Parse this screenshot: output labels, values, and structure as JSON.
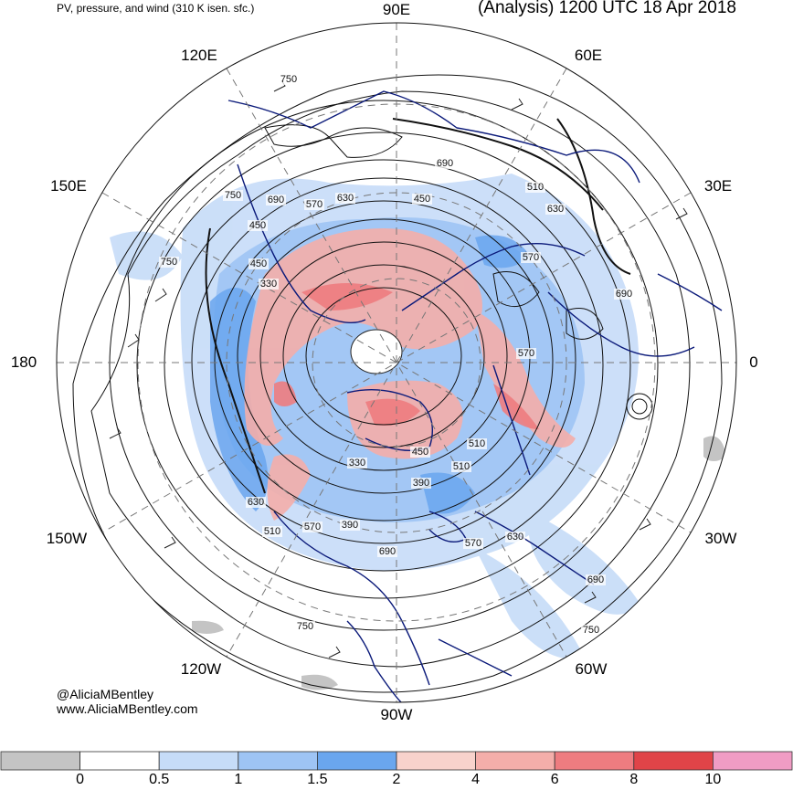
{
  "header": {
    "left_title": "PV, pressure, and wind (310 K isen. sfc.)",
    "right_title": "(Analysis) 1200 UTC 18 Apr 2018"
  },
  "credits": {
    "twitter": "@AliciaMBentley",
    "website": "www.AliciaMBentley.com"
  },
  "longitude_labels": [
    "90E",
    "60E",
    "30E",
    "0",
    "30W",
    "60W",
    "90W",
    "120W",
    "150W",
    "180",
    "150E",
    "120E"
  ],
  "pressure_labels": [
    "750",
    "690",
    "750",
    "630",
    "570",
    "450",
    "690",
    "510",
    "630",
    "570",
    "690",
    "330",
    "450",
    "510",
    "570",
    "630",
    "510",
    "450",
    "390",
    "690",
    "570",
    "630",
    "690",
    "750",
    "750",
    "750",
    "330",
    "390",
    "570",
    "450",
    "510"
  ],
  "colorbar": {
    "colors": [
      "#c4c4c4",
      "#ffffff",
      "#c6dcf8",
      "#9ec4f4",
      "#6aa6ee",
      "#f8d2cc",
      "#f4aeaa",
      "#ee7c80",
      "#e04448",
      "#f09cc4"
    ],
    "ticks": [
      "0",
      "0.5",
      "1",
      "1.5",
      "2",
      "4",
      "6",
      "8",
      "10"
    ]
  }
}
